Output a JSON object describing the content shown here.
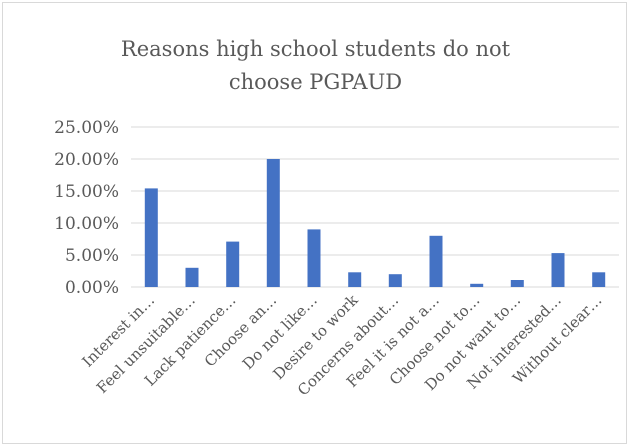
{
  "chart_data": {
    "type": "bar",
    "title_lines": [
      "Reasons high school students do not",
      "choose PGPAUD"
    ],
    "categories": [
      "Interest in…",
      "Feel unsuitable…",
      "Lack patience…",
      "Choose an…",
      "Do not like…",
      "Desire to work",
      "Concerns about…",
      "Feel it is not a…",
      "Choose not to…",
      "Do not want to…",
      "Not interested…",
      "Without clear…"
    ],
    "values": [
      15.4,
      3.0,
      7.1,
      20.0,
      9.0,
      2.3,
      2.0,
      8.0,
      0.5,
      1.1,
      5.3,
      2.3
    ],
    "y_ticks": [
      "0.00%",
      "5.00%",
      "10.00%",
      "15.00%",
      "20.00%",
      "25.00%"
    ],
    "ylim": [
      0,
      25
    ],
    "grid": true,
    "bar_color": "#4472c4",
    "grid_color": "#d9d9d9",
    "text_color": "#595959"
  }
}
